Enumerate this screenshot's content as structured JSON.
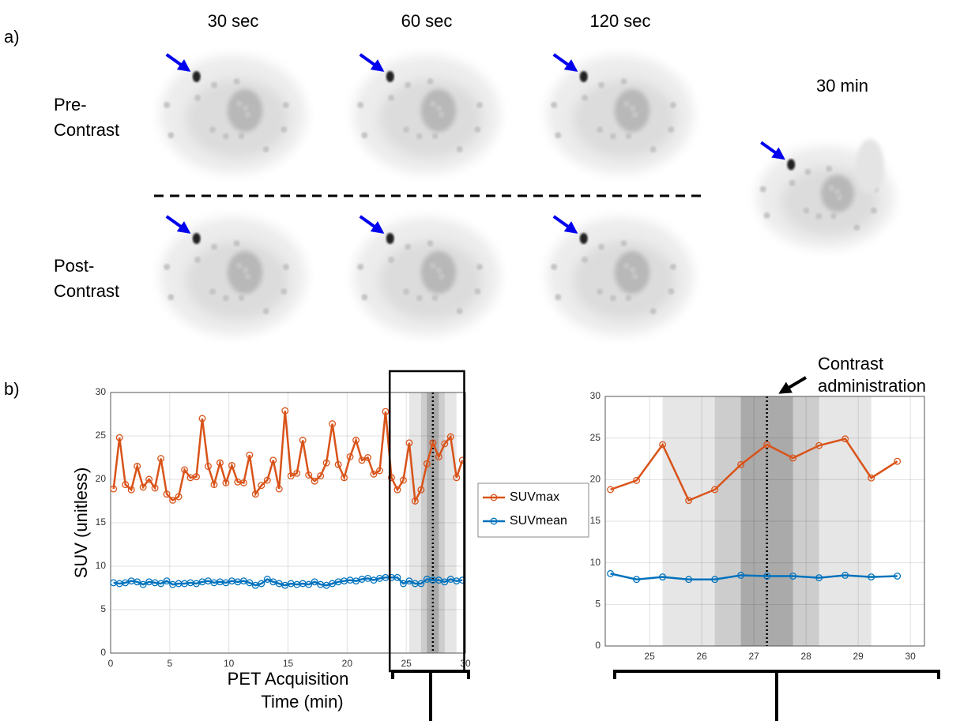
{
  "panel_labels": [
    "a)",
    "b)"
  ],
  "images": {
    "columns": [
      "30 sec",
      "60 sec",
      "120 sec"
    ],
    "rows": [
      [
        "Pre-",
        "Contrast"
      ],
      [
        "Post-",
        "Contrast"
      ]
    ],
    "late": "30 min"
  },
  "annotation": [
    "Contrast",
    "administration"
  ],
  "chart_data": [
    {
      "type": "line",
      "ylabel": "SUV (unitless)",
      "xlabel": [
        "PET Acquisition",
        "Time (min)"
      ],
      "x": [
        0.25,
        0.75,
        1.25,
        1.75,
        2.25,
        2.75,
        3.25,
        3.75,
        4.25,
        4.75,
        5.25,
        5.75,
        6.25,
        6.75,
        7.25,
        7.75,
        8.25,
        8.75,
        9.25,
        9.75,
        10.25,
        10.75,
        11.25,
        11.75,
        12.25,
        12.75,
        13.25,
        13.75,
        14.25,
        14.75,
        15.25,
        15.75,
        16.25,
        16.75,
        17.25,
        17.75,
        18.25,
        18.75,
        19.25,
        19.75,
        20.25,
        20.75,
        21.25,
        21.75,
        22.25,
        22.75,
        23.25,
        23.75,
        24.25,
        24.75,
        25.25,
        25.75,
        26.25,
        26.75,
        27.25,
        27.75,
        28.25,
        28.75,
        29.25,
        29.75
      ],
      "series": [
        {
          "name": "SUVmax",
          "color": "#d95319",
          "values": [
            18.9,
            24.8,
            19.4,
            18.8,
            21.5,
            19.1,
            20.0,
            19.0,
            22.4,
            18.3,
            17.6,
            18.0,
            21.1,
            20.2,
            20.3,
            27.0,
            21.5,
            19.4,
            21.9,
            19.6,
            21.6,
            19.7,
            19.6,
            22.8,
            18.3,
            19.3,
            19.9,
            22.2,
            18.9,
            27.9,
            20.4,
            20.7,
            24.5,
            20.5,
            19.8,
            20.4,
            21.9,
            26.4,
            21.7,
            20.2,
            22.6,
            24.5,
            22.2,
            22.5,
            20.6,
            21.0,
            27.8,
            20.2,
            18.8,
            19.9,
            24.2,
            17.5,
            18.8,
            21.8,
            24.2,
            22.6,
            24.1,
            24.9,
            20.2,
            22.2
          ]
        },
        {
          "name": "SUVmean",
          "color": "#0072bd",
          "values": [
            8.1,
            8.0,
            8.1,
            8.3,
            8.2,
            7.9,
            8.2,
            8.1,
            8.0,
            8.3,
            7.9,
            8.0,
            8.0,
            8.1,
            8.0,
            8.2,
            8.3,
            8.1,
            8.2,
            8.1,
            8.3,
            8.2,
            8.3,
            8.1,
            7.8,
            8.0,
            8.5,
            8.2,
            8.0,
            7.8,
            8.0,
            7.9,
            8.0,
            7.9,
            8.2,
            7.9,
            7.8,
            8.0,
            8.2,
            8.3,
            8.4,
            8.3,
            8.5,
            8.6,
            8.4,
            8.6,
            8.7,
            8.7,
            8.7,
            8.0,
            8.3,
            8.0,
            8.0,
            8.5,
            8.4,
            8.4,
            8.2,
            8.5,
            8.3,
            8.4
          ]
        }
      ],
      "xlim": [
        0,
        30
      ],
      "ylim": [
        0,
        30
      ],
      "xticks": [
        0,
        5,
        10,
        15,
        20,
        25,
        30
      ],
      "yticks": [
        0,
        5,
        10,
        15,
        20,
        25,
        30
      ],
      "grid": true,
      "legend": "outside right",
      "bands": [
        [
          25.25,
          29.25
        ],
        [
          26.25,
          28.25
        ],
        [
          26.75,
          27.75
        ]
      ],
      "band_colors": [
        "#e6e6e6",
        "#cdcdcd",
        "#aaaaaa"
      ],
      "marker_x": 27.25,
      "highlight": [
        23.6,
        29.9
      ]
    },
    {
      "type": "line",
      "x": [
        24.25,
        24.75,
        25.25,
        25.75,
        26.25,
        26.75,
        27.25,
        27.75,
        28.25,
        28.75,
        29.25,
        29.75
      ],
      "series": [
        {
          "color": "#d95319",
          "values": [
            18.8,
            19.9,
            24.2,
            17.5,
            18.8,
            21.8,
            24.2,
            22.6,
            24.1,
            24.9,
            20.2,
            22.2
          ]
        },
        {
          "color": "#0072bd",
          "values": [
            8.7,
            8.0,
            8.3,
            8.0,
            8.0,
            8.5,
            8.4,
            8.4,
            8.2,
            8.5,
            8.3,
            8.4
          ]
        }
      ],
      "xlim": [
        24.15,
        30.27
      ],
      "ylim": [
        0,
        30
      ],
      "xticks": [
        25,
        26,
        27,
        28,
        29,
        30
      ],
      "yticks": [
        0,
        5,
        10,
        15,
        20,
        25,
        30
      ],
      "grid": true,
      "bands": [
        [
          25.25,
          29.25
        ],
        [
          26.25,
          28.25
        ],
        [
          26.75,
          27.75
        ]
      ],
      "band_colors": [
        "#e6e6e6",
        "#cdcdcd",
        "#aaaaaa"
      ],
      "marker_x": 27.25
    }
  ]
}
